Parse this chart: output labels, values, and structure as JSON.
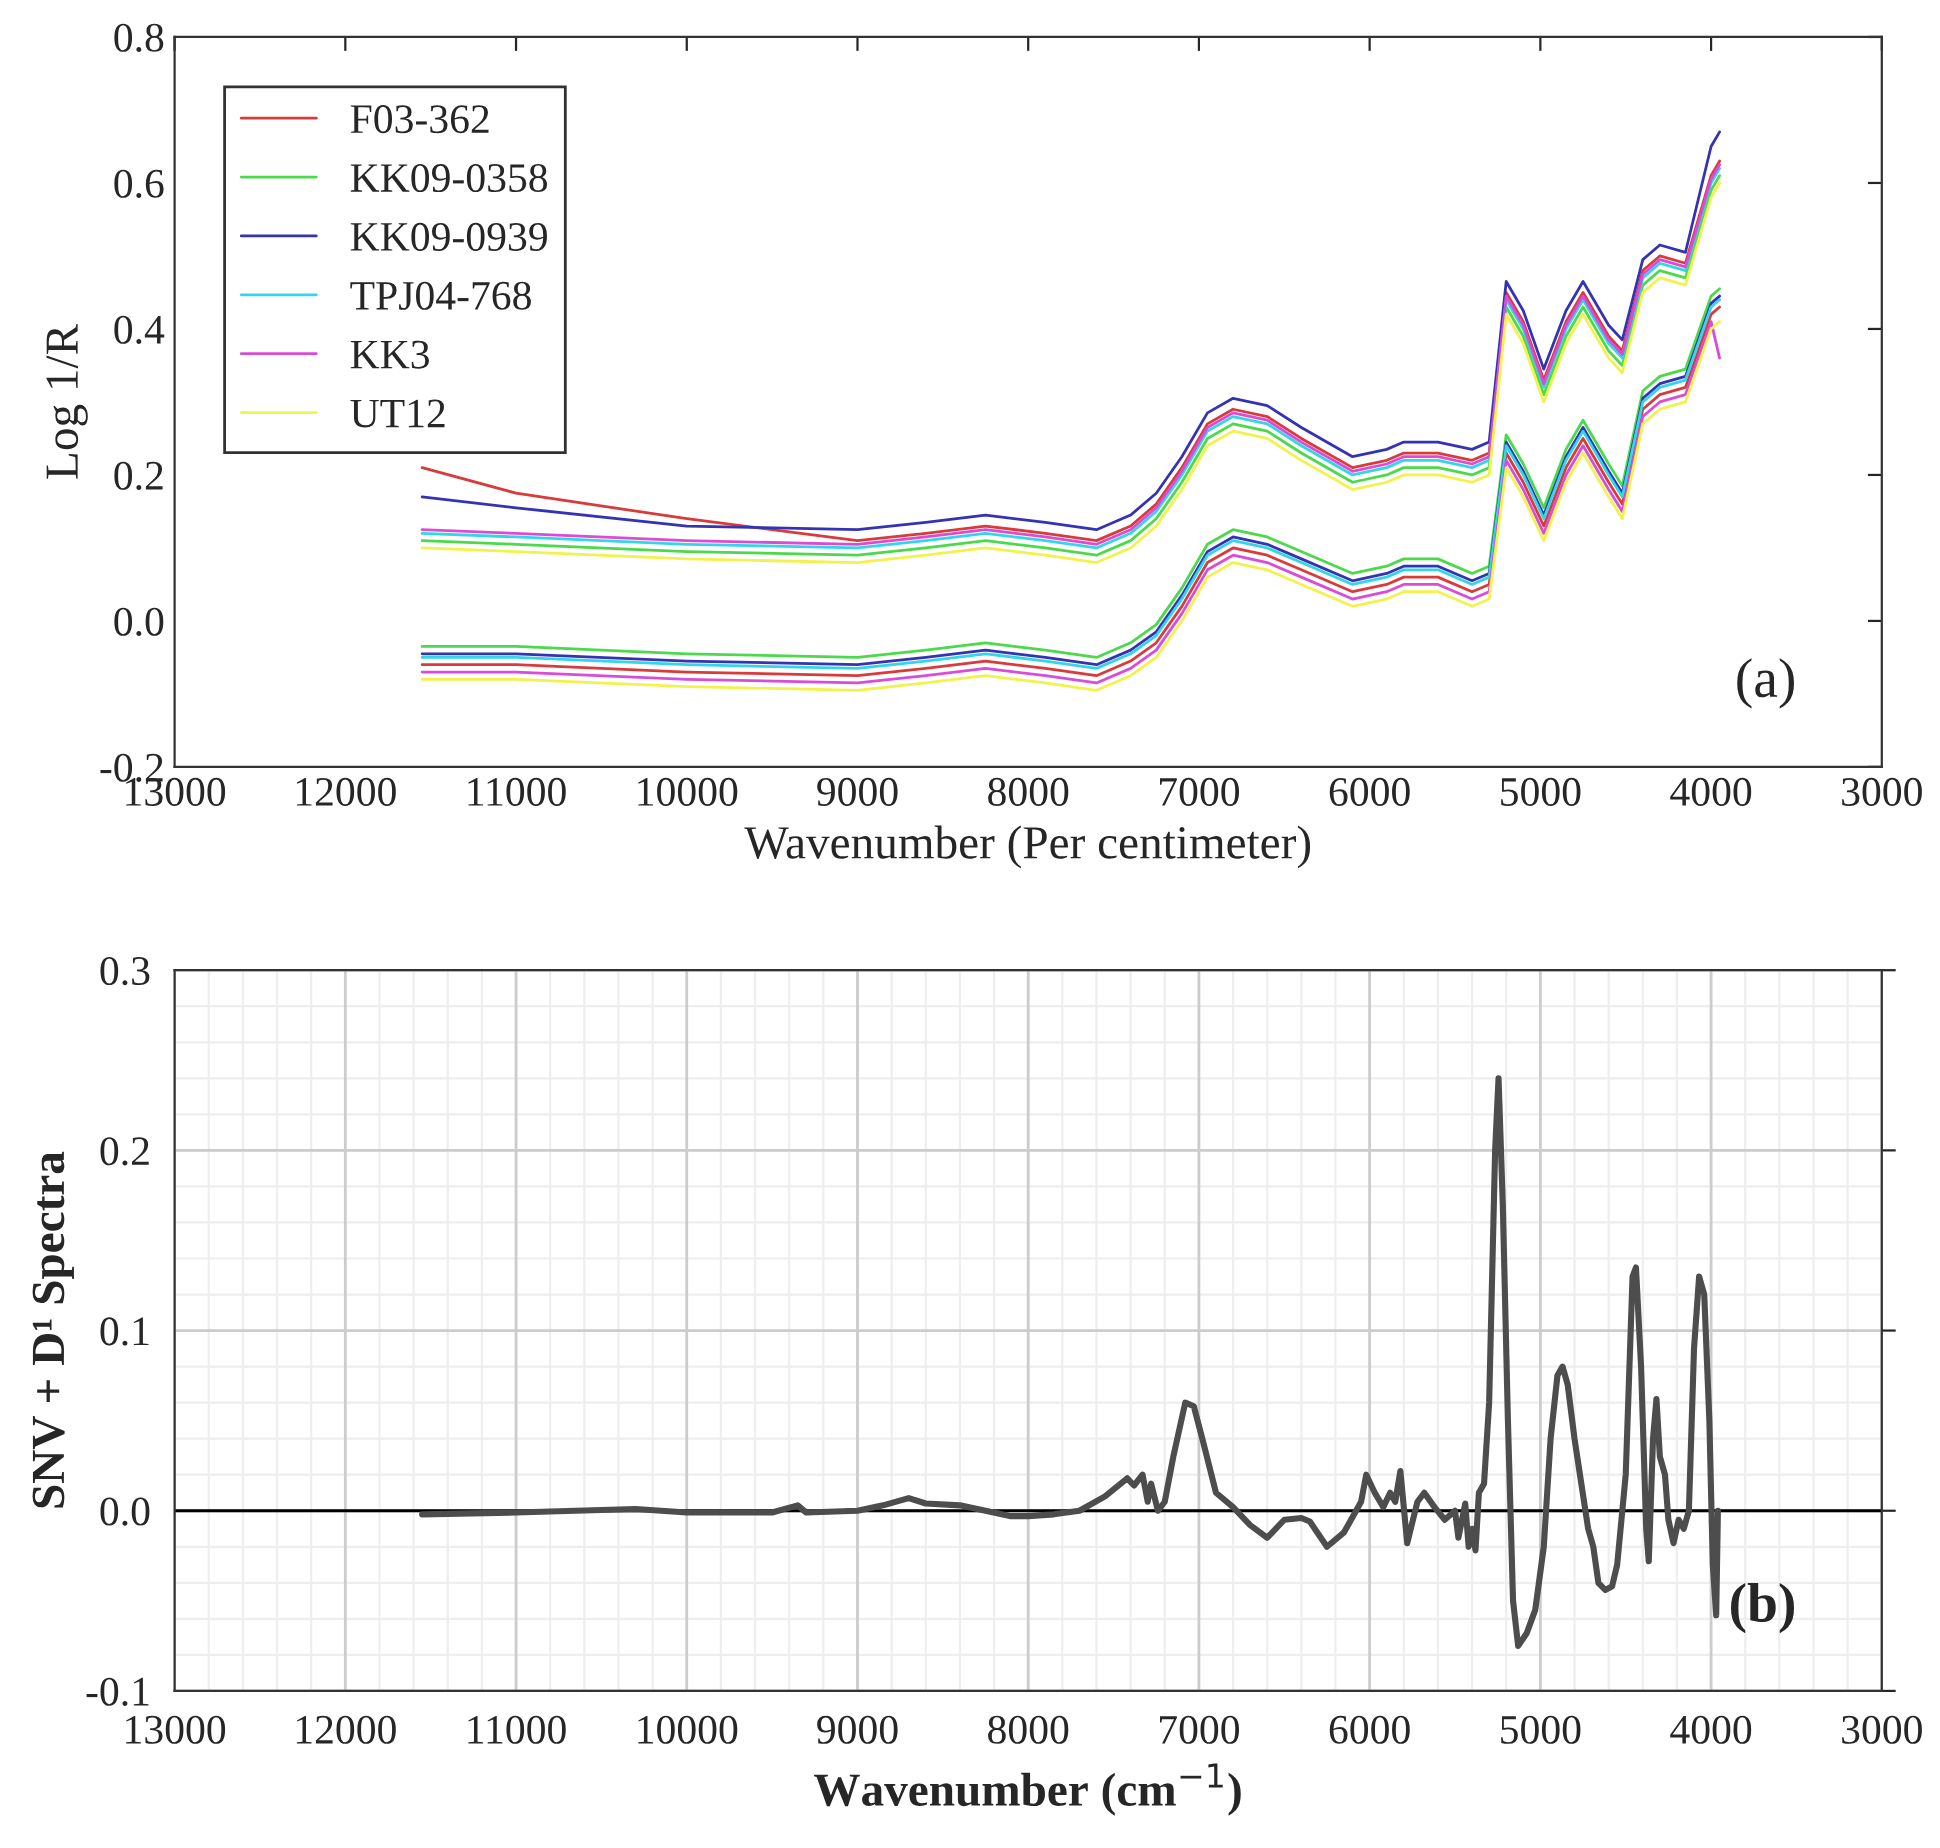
{
  "chart_data": [
    {
      "type": "line",
      "xlabel": "Wavenumber (Per centimeter)",
      "ylabel": "Log 1/R",
      "annotations": [
        "(a)"
      ],
      "legend": "top left",
      "grid": false,
      "xlim": [
        13000,
        3000
      ],
      "xticks": [
        13000,
        12000,
        11000,
        10000,
        9000,
        8000,
        7000,
        6000,
        5000,
        4000,
        3000
      ],
      "ylim": [
        -0.2,
        0.8
      ],
      "yticks": [
        {
          "value": -0.2,
          "label": "-0.2"
        },
        {
          "value": 0,
          "label": "0.0"
        },
        {
          "value": 0.2,
          "label": "0.2"
        },
        {
          "value": 0.4,
          "label": "0.4"
        },
        {
          "value": 0.6,
          "label": "0.6"
        },
        {
          "value": 0.8,
          "label": "0.8"
        }
      ],
      "x": [
        11550,
        11000,
        10000,
        9000,
        8600,
        8250,
        7900,
        7600,
        7400,
        7250,
        7100,
        6950,
        6800,
        6600,
        6400,
        6100,
        5900,
        5800,
        5600,
        5400,
        5300,
        5200,
        5100,
        4980,
        4850,
        4750,
        4600,
        4520,
        4400,
        4300,
        4150,
        4000,
        3950
      ],
      "series": [
        {
          "name": "F03-362",
          "color": "#d93b3b",
          "values": [
            0.21,
            0.175,
            0.14,
            0.11,
            0.12,
            0.13,
            0.12,
            0.11,
            0.13,
            0.16,
            0.21,
            0.27,
            0.29,
            0.28,
            0.25,
            0.21,
            0.22,
            0.23,
            0.23,
            0.22,
            0.23,
            0.45,
            0.41,
            0.33,
            0.41,
            0.45,
            0.39,
            0.37,
            0.48,
            0.5,
            0.49,
            0.61,
            0.63
          ]
        },
        {
          "name": "KK09-0358",
          "color": "#4cd94c",
          "values": [
            0.11,
            0.105,
            0.095,
            0.09,
            0.1,
            0.11,
            0.1,
            0.09,
            0.11,
            0.14,
            0.19,
            0.25,
            0.27,
            0.26,
            0.23,
            0.19,
            0.2,
            0.21,
            0.21,
            0.2,
            0.21,
            0.43,
            0.39,
            0.31,
            0.39,
            0.43,
            0.37,
            0.35,
            0.46,
            0.48,
            0.47,
            0.59,
            0.61
          ]
        },
        {
          "name": "KK09-0939",
          "color": "#3333b3",
          "values": [
            0.17,
            0.155,
            0.13,
            0.125,
            0.135,
            0.145,
            0.135,
            0.125,
            0.145,
            0.175,
            0.225,
            0.285,
            0.305,
            0.295,
            0.265,
            0.225,
            0.235,
            0.245,
            0.245,
            0.235,
            0.245,
            0.465,
            0.425,
            0.345,
            0.425,
            0.465,
            0.405,
            0.385,
            0.495,
            0.515,
            0.505,
            0.65,
            0.67
          ]
        },
        {
          "name": "TPJ04-768",
          "color": "#33d6e6",
          "values": [
            0.12,
            0.115,
            0.105,
            0.1,
            0.11,
            0.12,
            0.11,
            0.1,
            0.12,
            0.15,
            0.2,
            0.26,
            0.28,
            0.27,
            0.24,
            0.2,
            0.21,
            0.22,
            0.22,
            0.21,
            0.22,
            0.44,
            0.4,
            0.32,
            0.4,
            0.44,
            0.38,
            0.36,
            0.47,
            0.49,
            0.48,
            0.6,
            0.62
          ]
        },
        {
          "name": "KK3",
          "color": "#d94cd9",
          "values": [
            0.125,
            0.12,
            0.11,
            0.105,
            0.115,
            0.125,
            0.115,
            0.105,
            0.125,
            0.155,
            0.205,
            0.265,
            0.285,
            0.275,
            0.245,
            0.205,
            0.215,
            0.225,
            0.225,
            0.215,
            0.225,
            0.445,
            0.405,
            0.325,
            0.405,
            0.445,
            0.385,
            0.365,
            0.475,
            0.495,
            0.485,
            0.605,
            0.625
          ]
        },
        {
          "name": "UT12",
          "color": "#f2f24c",
          "values": [
            0.1,
            0.095,
            0.085,
            0.08,
            0.09,
            0.1,
            0.09,
            0.08,
            0.1,
            0.13,
            0.18,
            0.24,
            0.26,
            0.25,
            0.22,
            0.18,
            0.19,
            0.2,
            0.2,
            0.19,
            0.2,
            0.42,
            0.38,
            0.3,
            0.38,
            0.42,
            0.36,
            0.34,
            0.45,
            0.47,
            0.46,
            0.58,
            0.6
          ]
        },
        {
          "color": "#d93b3b",
          "values": [
            -0.06,
            -0.06,
            -0.07,
            -0.075,
            -0.065,
            -0.055,
            -0.065,
            -0.075,
            -0.055,
            -0.03,
            0.02,
            0.08,
            0.1,
            0.09,
            0.07,
            0.04,
            0.05,
            0.06,
            0.06,
            0.04,
            0.05,
            0.23,
            0.19,
            0.13,
            0.21,
            0.25,
            0.19,
            0.16,
            0.29,
            0.31,
            0.32,
            0.42,
            0.43
          ]
        },
        {
          "color": "#4cd94c",
          "values": [
            -0.035,
            -0.035,
            -0.045,
            -0.05,
            -0.04,
            -0.03,
            -0.04,
            -0.05,
            -0.03,
            -0.005,
            0.045,
            0.105,
            0.125,
            0.115,
            0.095,
            0.065,
            0.075,
            0.085,
            0.085,
            0.065,
            0.075,
            0.255,
            0.215,
            0.155,
            0.235,
            0.275,
            0.215,
            0.185,
            0.315,
            0.335,
            0.345,
            0.445,
            0.455
          ]
        },
        {
          "color": "#3333b3",
          "values": [
            -0.045,
            -0.045,
            -0.055,
            -0.06,
            -0.05,
            -0.04,
            -0.05,
            -0.06,
            -0.04,
            -0.015,
            0.035,
            0.095,
            0.115,
            0.105,
            0.085,
            0.055,
            0.065,
            0.075,
            0.075,
            0.055,
            0.065,
            0.245,
            0.205,
            0.145,
            0.225,
            0.265,
            0.205,
            0.175,
            0.305,
            0.325,
            0.335,
            0.435,
            0.445
          ]
        },
        {
          "color": "#33d6e6",
          "values": [
            -0.05,
            -0.05,
            -0.06,
            -0.065,
            -0.055,
            -0.045,
            -0.055,
            -0.065,
            -0.045,
            -0.02,
            0.03,
            0.09,
            0.11,
            0.1,
            0.08,
            0.05,
            0.06,
            0.07,
            0.07,
            0.05,
            0.06,
            0.24,
            0.2,
            0.14,
            0.22,
            0.26,
            0.2,
            0.17,
            0.3,
            0.32,
            0.33,
            0.43,
            0.44
          ]
        },
        {
          "color": "#d94cd9",
          "values": [
            -0.07,
            -0.07,
            -0.08,
            -0.085,
            -0.075,
            -0.065,
            -0.075,
            -0.085,
            -0.065,
            -0.04,
            0.01,
            0.07,
            0.09,
            0.08,
            0.06,
            0.03,
            0.04,
            0.05,
            0.05,
            0.03,
            0.04,
            0.22,
            0.18,
            0.12,
            0.2,
            0.24,
            0.18,
            0.15,
            0.28,
            0.3,
            0.31,
            0.41,
            0.36
          ]
        },
        {
          "color": "#f2f24c",
          "values": [
            -0.08,
            -0.08,
            -0.09,
            -0.095,
            -0.085,
            -0.075,
            -0.085,
            -0.095,
            -0.075,
            -0.05,
            0.0,
            0.06,
            0.08,
            0.07,
            0.05,
            0.02,
            0.03,
            0.04,
            0.04,
            0.02,
            0.03,
            0.21,
            0.17,
            0.11,
            0.19,
            0.23,
            0.17,
            0.14,
            0.27,
            0.29,
            0.3,
            0.4,
            0.41
          ]
        }
      ]
    },
    {
      "type": "line",
      "xlabel": "Wavenumber (cm$^{−1}$)",
      "ylabel": "SNV + D¹ Spectra",
      "annotations": [
        "(b)"
      ],
      "grid": true,
      "legend": false,
      "xlim": [
        13000,
        3000
      ],
      "xticks": [
        13000,
        12000,
        11000,
        10000,
        9000,
        8000,
        7000,
        6000,
        5000,
        4000,
        3000
      ],
      "ylim": [
        -0.1,
        0.3
      ],
      "yticks": [
        {
          "value": -0.1,
          "label": "-0.1"
        },
        {
          "value": 0,
          "label": "0.0"
        },
        {
          "value": 0.1,
          "label": "0.1"
        },
        {
          "value": 0.2,
          "label": "0.2"
        },
        {
          "value": 0.3,
          "label": "0.3"
        }
      ],
      "ref_lines": [
        {
          "axis": "y",
          "value": 0,
          "color": "#000000"
        }
      ],
      "x": [
        11550,
        11000,
        10300,
        10000,
        9500,
        9350,
        9300,
        9000,
        8850,
        8700,
        8600,
        8400,
        8250,
        8100,
        8000,
        7850,
        7700,
        7550,
        7420,
        7380,
        7330,
        7300,
        7280,
        7240,
        7200,
        7150,
        7080,
        7030,
        6980,
        6900,
        6800,
        6700,
        6600,
        6500,
        6400,
        6350,
        6250,
        6150,
        6050,
        6020,
        5970,
        5920,
        5880,
        5850,
        5820,
        5780,
        5720,
        5680,
        5620,
        5560,
        5500,
        5480,
        5440,
        5420,
        5400,
        5380,
        5360,
        5330,
        5300,
        5265,
        5245,
        5220,
        5190,
        5160,
        5130,
        5080,
        5030,
        4980,
        4940,
        4900,
        4870,
        4840,
        4800,
        4760,
        4720,
        4690,
        4660,
        4620,
        4580,
        4550,
        4500,
        4460,
        4440,
        4410,
        4380,
        4365,
        4340,
        4320,
        4300,
        4270,
        4250,
        4220,
        4190,
        4160,
        4130,
        4100,
        4070,
        4040,
        4010,
        3990,
        3970,
        3960
      ],
      "series": [
        {
          "color": "#4d4d4d",
          "values": [
            -0.002,
            -0.001,
            0.001,
            -0.001,
            -0.001,
            0.003,
            -0.001,
            0.0,
            0.003,
            0.007,
            0.004,
            0.003,
            0.0,
            -0.003,
            -0.003,
            -0.002,
            0.0,
            0.008,
            0.018,
            0.014,
            0.02,
            0.005,
            0.015,
            0.0,
            0.005,
            0.03,
            0.06,
            0.058,
            0.04,
            0.01,
            0.002,
            -0.008,
            -0.015,
            -0.005,
            -0.004,
            -0.006,
            -0.02,
            -0.012,
            0.005,
            0.02,
            0.01,
            0.002,
            0.01,
            0.005,
            0.022,
            -0.018,
            0.005,
            0.01,
            0.002,
            -0.005,
            0.0,
            -0.015,
            0.004,
            -0.02,
            -0.01,
            -0.022,
            0.01,
            0.015,
            0.06,
            0.2,
            0.24,
            0.17,
            0.05,
            -0.05,
            -0.075,
            -0.068,
            -0.055,
            -0.02,
            0.04,
            0.075,
            0.08,
            0.07,
            0.04,
            0.015,
            -0.01,
            -0.02,
            -0.04,
            -0.044,
            -0.042,
            -0.03,
            0.02,
            0.13,
            0.135,
            0.08,
            -0.01,
            -0.028,
            0.04,
            0.062,
            0.03,
            0.02,
            -0.005,
            -0.018,
            -0.005,
            -0.01,
            0.0,
            0.09,
            0.13,
            0.12,
            0.05,
            -0.03,
            -0.058,
            0.0
          ]
        }
      ]
    }
  ]
}
